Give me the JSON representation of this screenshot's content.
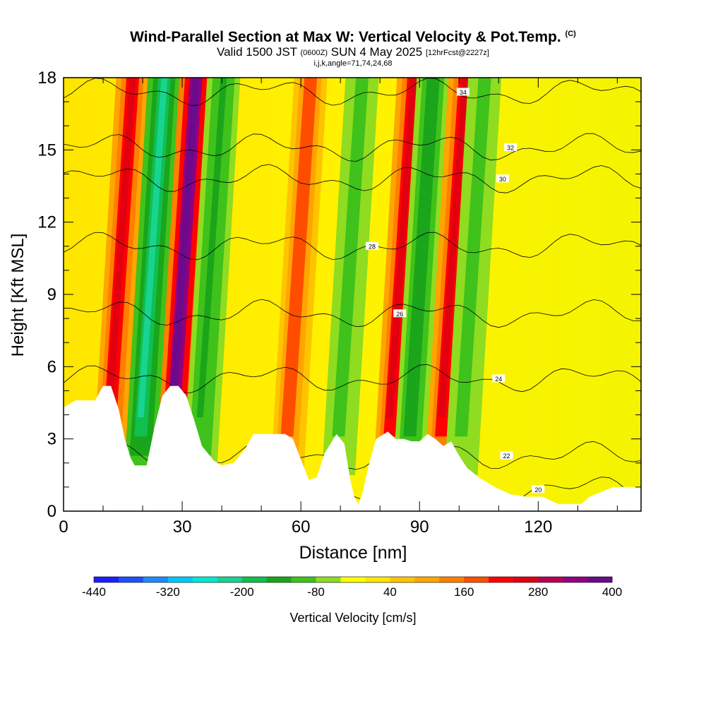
{
  "chart_data": {
    "type": "heatmap",
    "title": "Wind-Parallel Section at Max W: Vertical Velocity & Pot.Temp.",
    "title_mark": "(C)",
    "subtitle": {
      "valid_prefix": "Valid 1500 JST",
      "utc": "(0600Z)",
      "date": "SUN 4 May 2025",
      "forecast": "[12hrFcst@2227z]"
    },
    "sub_subtitle": "i,j,k,angle=71,74,24,68",
    "xlabel": "Distance [nm]",
    "ylabel": "Height [Kft MSL]",
    "x_ticks": [
      "0",
      "30",
      "60",
      "90",
      "120"
    ],
    "y_ticks": [
      "0",
      "3",
      "6",
      "9",
      "12",
      "15",
      "18"
    ],
    "xlim": [
      0,
      146
    ],
    "ylim": [
      0,
      18
    ],
    "grid": false,
    "colorbar": {
      "label": "Vertical Velocity [cm/s]",
      "ticks": [
        "-440",
        "-320",
        "-200",
        "-80",
        "40",
        "160",
        "280",
        "400"
      ],
      "colors": [
        "#1e1eff",
        "#1f4fff",
        "#1d8bff",
        "#00c8ff",
        "#00e8d0",
        "#18d490",
        "#10bf50",
        "#1aa51a",
        "#3fc21b",
        "#8fdc20",
        "#ffff00",
        "#ffe600",
        "#ffc400",
        "#ffa500",
        "#ff7f00",
        "#ff4d00",
        "#ff0000",
        "#e00010",
        "#b80050",
        "#900080",
        "#6a0a8c"
      ]
    },
    "background_value_band": "0 to 40 cm/s",
    "velocity_bands": [
      {
        "x_center": 17,
        "type": "updraft",
        "max_cm_s": 280
      },
      {
        "x_center": 25,
        "type": "downdraft",
        "min_cm_s": -240
      },
      {
        "x_center": 33,
        "type": "updraft",
        "max_cm_s": 400
      },
      {
        "x_center": 40,
        "type": "downdraft",
        "min_cm_s": -140
      },
      {
        "x_center": 62,
        "type": "updraft",
        "max_cm_s": 200
      },
      {
        "x_center": 75,
        "type": "downdraft",
        "min_cm_s": -120
      },
      {
        "x_center": 88,
        "type": "updraft",
        "max_cm_s": 280
      },
      {
        "x_center": 93,
        "type": "downdraft",
        "min_cm_s": -160
      },
      {
        "x_center": 101,
        "type": "updraft",
        "max_cm_s": 280
      },
      {
        "x_center": 106,
        "type": "downdraft",
        "min_cm_s": -120
      }
    ],
    "theta_contours": [
      {
        "label": "20",
        "label_at": [
          120,
          0.9
        ]
      },
      {
        "label": "22",
        "label_at": [
          112,
          2.3
        ]
      },
      {
        "label": "24",
        "label_at": [
          110,
          5.5
        ]
      },
      {
        "label": "26",
        "label_at": [
          85,
          8.2
        ]
      },
      {
        "label": "28",
        "label_at": [
          78,
          11.0
        ]
      },
      {
        "label": "30",
        "label_at": [
          111,
          13.8
        ]
      },
      {
        "label": "32",
        "label_at": [
          113,
          15.1
        ]
      },
      {
        "label": "34",
        "label_at": [
          101,
          17.4
        ]
      }
    ],
    "terrain_profile": [
      [
        0,
        4.3
      ],
      [
        3,
        4.6
      ],
      [
        8,
        4.6
      ],
      [
        10,
        5.2
      ],
      [
        12,
        5.2
      ],
      [
        14,
        4.2
      ],
      [
        15.5,
        3.0
      ],
      [
        17,
        2.2
      ],
      [
        18,
        1.9
      ],
      [
        21,
        1.9
      ],
      [
        23,
        3.5
      ],
      [
        25,
        4.8
      ],
      [
        27,
        5.2
      ],
      [
        29,
        5.2
      ],
      [
        31,
        4.8
      ],
      [
        33,
        3.8
      ],
      [
        35,
        2.7
      ],
      [
        38,
        2.1
      ],
      [
        40,
        1.9
      ],
      [
        43,
        2.0
      ],
      [
        46,
        2.6
      ],
      [
        48,
        3.2
      ],
      [
        53,
        3.2
      ],
      [
        56,
        3.2
      ],
      [
        58,
        3.0
      ],
      [
        62,
        1.3
      ],
      [
        64,
        1.4
      ],
      [
        66,
        2.4
      ],
      [
        69,
        3.2
      ],
      [
        71,
        2.8
      ],
      [
        72.5,
        1.3
      ],
      [
        73.5,
        0.6
      ],
      [
        74.5,
        0.3
      ],
      [
        75.5,
        0.7
      ],
      [
        77,
        1.8
      ],
      [
        79,
        3.0
      ],
      [
        82,
        3.3
      ],
      [
        84,
        3.0
      ],
      [
        86,
        3.0
      ],
      [
        88,
        2.9
      ],
      [
        90,
        2.9
      ],
      [
        92,
        3.2
      ],
      [
        94,
        3.0
      ],
      [
        96,
        2.7
      ],
      [
        98,
        2.9
      ],
      [
        100,
        2.3
      ],
      [
        102,
        1.8
      ],
      [
        105,
        1.4
      ],
      [
        109,
        1.0
      ],
      [
        113,
        0.7
      ],
      [
        117,
        0.6
      ],
      [
        121,
        0.6
      ],
      [
        125,
        0.3
      ],
      [
        131,
        0.3
      ],
      [
        133,
        0.6
      ],
      [
        136,
        0.8
      ],
      [
        139,
        1.0
      ],
      [
        146,
        1.0
      ]
    ]
  }
}
